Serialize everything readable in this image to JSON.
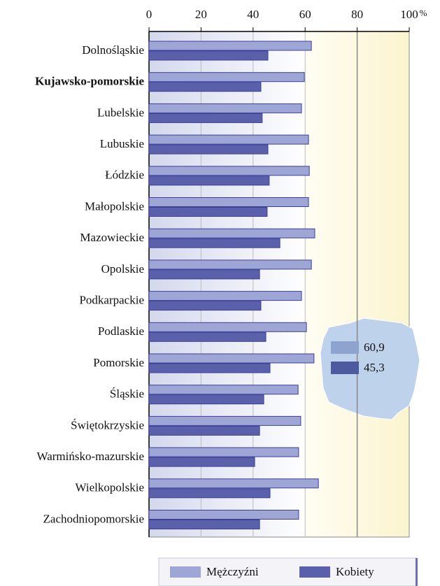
{
  "chart_data": {
    "type": "hbar",
    "categories": [
      "Dolnośląskie",
      "Kujawsko-pomorskie",
      "Lubelskie",
      "Lubuskie",
      "Łódzkie",
      "Małopolskie",
      "Mazowieckie",
      "Opolskie",
      "Podkarpackie",
      "Podlaskie",
      "Pomorskie",
      "Śląskie",
      "Świętokrzyskie",
      "Warmińsko-mazurskie",
      "Wielkopolskie",
      "Zachodniopomorskie"
    ],
    "highlight_index": 1,
    "series": [
      {
        "name": "Mężczyźni",
        "color": "#9ea6d6",
        "values": [
          62.4,
          59.7,
          58.6,
          61.3,
          61.6,
          61.3,
          63.7,
          62.4,
          58.6,
          60.5,
          63.4,
          57.3,
          58.3,
          57.5,
          65.1,
          57.5
        ]
      },
      {
        "name": "Kobiety",
        "color": "#5a60aa",
        "values": [
          45.7,
          43.0,
          43.5,
          45.7,
          46.2,
          45.4,
          50.3,
          42.5,
          43.0,
          44.9,
          46.5,
          44.1,
          42.5,
          40.6,
          46.5,
          42.5
        ]
      }
    ],
    "xlim": [
      0,
      100
    ],
    "xticks": [
      0,
      20,
      40,
      60,
      80,
      100
    ],
    "x_unit": "%",
    "grid": true,
    "poland": {
      "values": [
        60.9,
        45.3
      ],
      "value_labels": [
        "60,9",
        "45,3"
      ],
      "colors": [
        "#8fa3cf",
        "#4d5aa0"
      ]
    }
  }
}
